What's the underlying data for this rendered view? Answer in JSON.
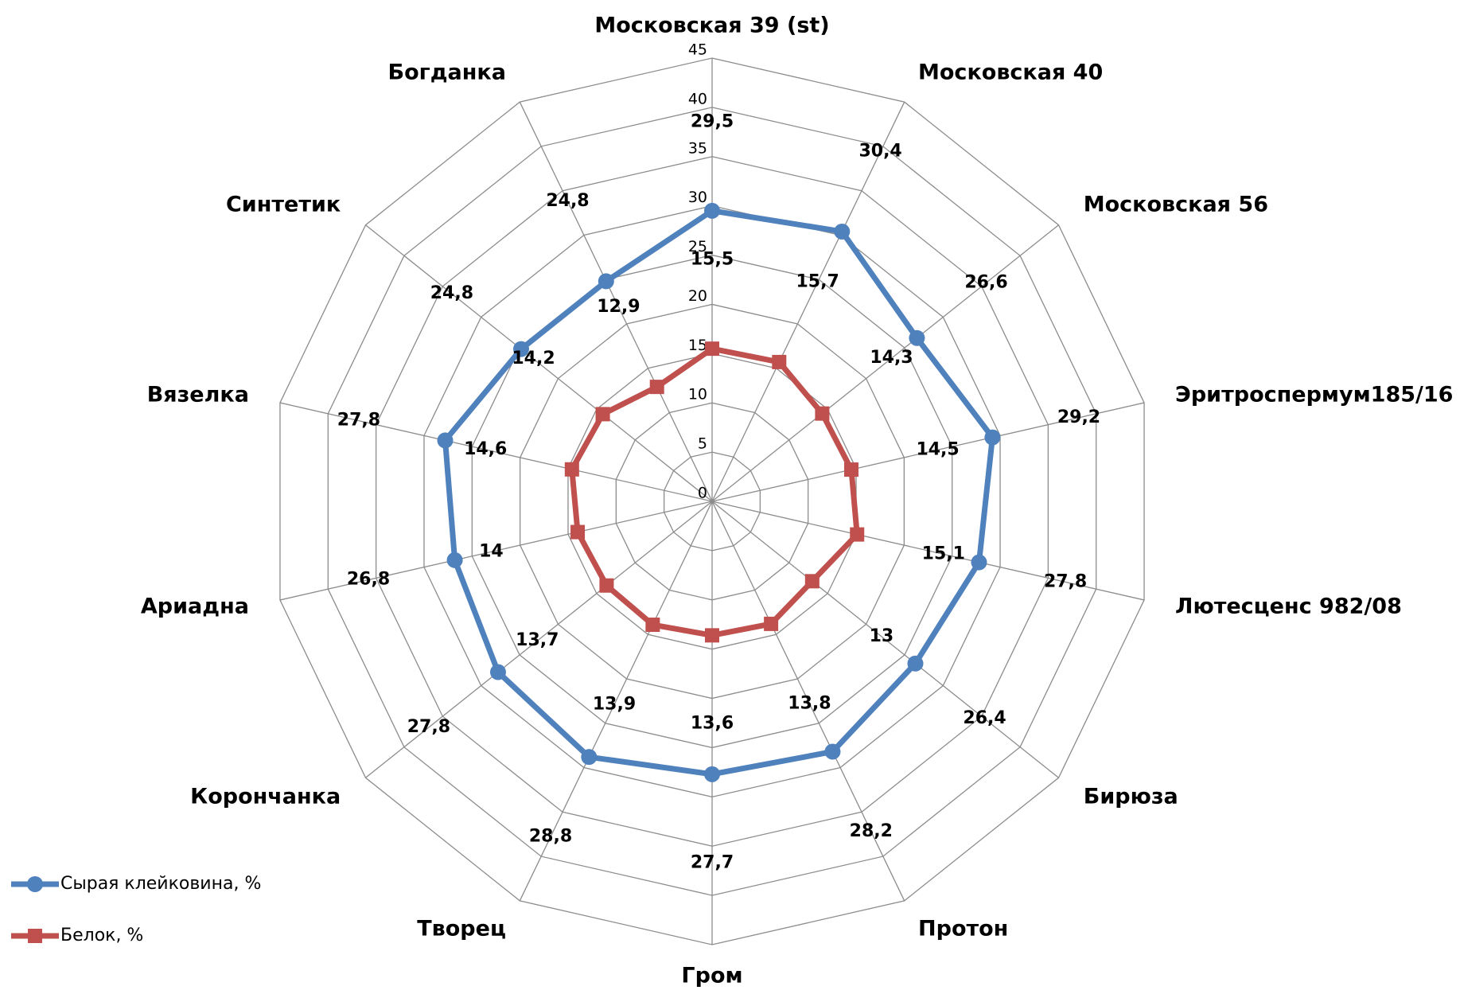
{
  "chart_data": {
    "type": "radar",
    "categories": [
      "Московская 39 (st)",
      "Московская 40",
      "Московская 56",
      "Эритроспермум185/16",
      "Лютесценс 982/08",
      "Бирюза",
      "Протон",
      "Гром",
      "Творец",
      "Корончанка",
      "Ариадна",
      "Вязелка",
      "Синтетик",
      "Богданка"
    ],
    "series": [
      {
        "name": "Сырая клейковина, %",
        "color": "#4f81bd",
        "marker": "circle",
        "values": [
          29.5,
          30.4,
          26.6,
          29.2,
          27.8,
          26.4,
          28.2,
          27.7,
          28.8,
          27.8,
          26.8,
          27.8,
          24.8,
          24.8
        ],
        "value_labels": [
          "29,5",
          "30,4",
          "26,6",
          "29,2",
          "27,8",
          "26,4",
          "28,2",
          "27,7",
          "28,8",
          "27,8",
          "26,8",
          "27,8",
          "24,8",
          "24,8"
        ]
      },
      {
        "name": "Белок, %",
        "color": "#c0504d",
        "marker": "square",
        "values": [
          15.5,
          15.7,
          14.3,
          14.5,
          15.1,
          13,
          13.8,
          13.6,
          13.9,
          13.7,
          14,
          14.6,
          14.2,
          12.9
        ],
        "value_labels": [
          "15,5",
          "15,7",
          "14,3",
          "14,5",
          "15,1",
          "13",
          "13,8",
          "13,6",
          "13,9",
          "13,7",
          "14",
          "14,6",
          "14,2",
          "12,9"
        ]
      }
    ],
    "ylim": [
      0,
      45
    ],
    "yticks": [
      0,
      5,
      10,
      15,
      20,
      25,
      30,
      35,
      40,
      45
    ],
    "grid": true,
    "legend": "bottom-left"
  }
}
